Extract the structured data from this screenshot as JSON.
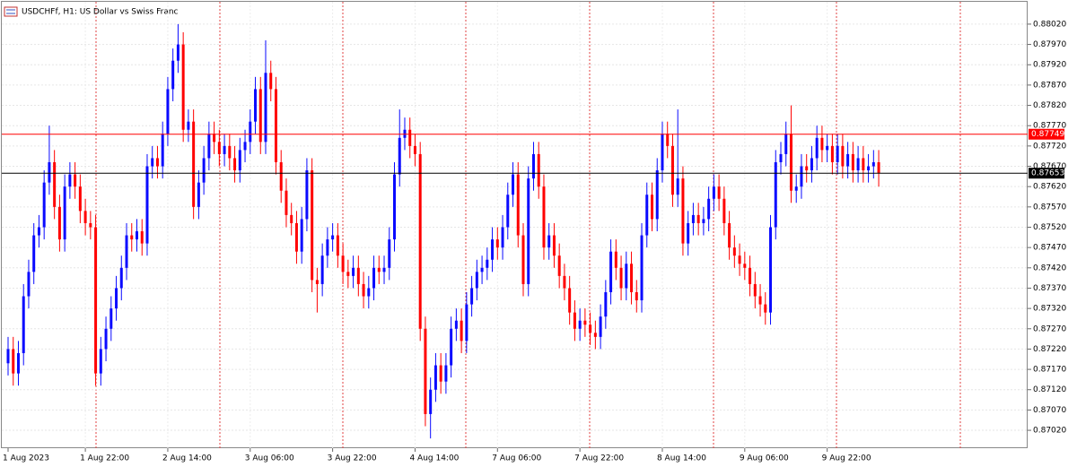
{
  "chart_data": {
    "type": "candlestick",
    "title": "USDCHFf, H1: US Dollar vs Swiss Franc",
    "categories": [
      "1 Aug 2023",
      null,
      null,
      null,
      null,
      null,
      null,
      null,
      null,
      null,
      null,
      null,
      null,
      null,
      null,
      "1 Aug 22:00",
      null,
      null,
      null,
      null,
      null,
      null,
      null,
      null,
      null,
      null,
      null,
      null,
      null,
      null,
      null,
      "2 Aug 14:00",
      null,
      null,
      null,
      null,
      null,
      null,
      null,
      null,
      null,
      null,
      null,
      null,
      null,
      null,
      null,
      "3 Aug 06:00",
      null,
      null,
      null,
      null,
      null,
      null,
      null,
      null,
      null,
      null,
      null,
      null,
      null,
      null,
      null,
      "3 Aug 22:00",
      null,
      null,
      null,
      null,
      null,
      null,
      null,
      null,
      null,
      null,
      null,
      null,
      null,
      null,
      null,
      "4 Aug 14:00",
      null,
      null,
      null,
      null,
      null,
      null,
      null,
      null,
      null,
      null,
      null,
      null,
      null,
      null,
      null,
      "7 Aug 06:00",
      null,
      null,
      null,
      null,
      null,
      null,
      null,
      null,
      null,
      null,
      null,
      null,
      null,
      null,
      null,
      "7 Aug 22:00",
      null,
      null,
      null,
      null,
      null,
      null,
      null,
      null,
      null,
      null,
      null,
      null,
      null,
      null,
      null,
      "8 Aug 14:00",
      null,
      null,
      null,
      null,
      null,
      null,
      null,
      null,
      null,
      null,
      null,
      null,
      null,
      null,
      null,
      "9 Aug 06:00",
      null,
      null,
      null,
      null,
      null,
      null,
      null,
      null,
      null,
      null,
      null,
      null,
      null,
      null,
      null,
      "9 Aug 22:00",
      null,
      null,
      null,
      null,
      null,
      null,
      null,
      null,
      null,
      null
    ],
    "open": [
      0.87185,
      0.8722,
      0.8716,
      0.8721,
      0.8735,
      0.8741,
      0.875,
      0.8752,
      0.8763,
      0.8768,
      0.8757,
      0.8749,
      0.8762,
      0.8765,
      0.8762,
      0.8756,
      0.8753,
      0.8752,
      0.8716,
      0.8722,
      0.8727,
      0.8732,
      0.8737,
      0.8742,
      0.875,
      0.8749,
      0.8751,
      0.8748,
      0.8767,
      0.8769,
      0.8767,
      0.8775,
      0.8786,
      0.8793,
      0.8797,
      0.8776,
      0.8778,
      0.8757,
      0.8763,
      0.8769,
      0.8775,
      0.8773,
      0.877,
      0.8772,
      0.8769,
      0.8766,
      0.8771,
      0.8773,
      0.8778,
      0.8786,
      0.8773,
      0.879,
      0.8786,
      0.8768,
      0.8761,
      0.8755,
      0.8753,
      0.8746,
      0.8754,
      0.8766,
      0.8739,
      0.8738,
      0.8745,
      0.8749,
      0.875,
      0.8745,
      0.8741,
      0.874,
      0.8742,
      0.8738,
      0.8735,
      0.8737,
      0.8742,
      0.8741,
      0.8742,
      0.8749,
      0.8765,
      0.8774,
      0.8776,
      0.8772,
      0.877,
      0.8727,
      0.8706,
      0.8712,
      0.8718,
      0.8714,
      0.8718,
      0.8727,
      0.8729,
      0.8724,
      0.8733,
      0.8737,
      0.8741,
      0.8742,
      0.8744,
      0.8749,
      0.8747,
      0.8752,
      0.876,
      0.8765,
      0.875,
      0.8738,
      0.8764,
      0.877,
      0.8762,
      0.8747,
      0.875,
      0.8745,
      0.874,
      0.8737,
      0.8731,
      0.8727,
      0.8729,
      0.8728,
      0.8726,
      0.8725,
      0.873,
      0.8736,
      0.8746,
      0.8742,
      0.8737,
      0.8743,
      0.8736,
      0.8734,
      0.875,
      0.876,
      0.8754,
      0.8766,
      0.8775,
      0.8772,
      0.876,
      0.8764,
      0.8748,
      0.8753,
      0.8755,
      0.8753,
      0.8754,
      0.8759,
      0.8762,
      0.8759,
      0.8753,
      0.8747,
      0.8745,
      0.8743,
      0.8742,
      0.8738,
      0.8735,
      0.8733,
      0.8731,
      0.8752,
      0.8768,
      0.877,
      0.8775,
      0.8761,
      0.8762,
      0.8767,
      0.8766,
      0.8769,
      0.8774,
      0.8771,
      0.8772,
      0.8768,
      0.8772,
      0.8767,
      0.877,
      0.8766,
      0.8769,
      0.8766,
      0.8767,
      0.8768
    ],
    "high": [
      0.8725,
      0.8725,
      0.8724,
      0.8738,
      0.8744,
      0.8753,
      0.8755,
      0.8766,
      0.8777,
      0.8771,
      0.876,
      0.8765,
      0.8768,
      0.8768,
      0.8765,
      0.8759,
      0.8756,
      0.8755,
      0.8725,
      0.873,
      0.8735,
      0.874,
      0.8745,
      0.8753,
      0.8753,
      0.8754,
      0.8754,
      0.877,
      0.8772,
      0.8772,
      0.8778,
      0.8789,
      0.8796,
      0.8802,
      0.88,
      0.8781,
      0.8781,
      0.8766,
      0.8772,
      0.8778,
      0.8778,
      0.8776,
      0.8775,
      0.8775,
      0.8772,
      0.8774,
      0.8776,
      0.8781,
      0.8789,
      0.8789,
      0.8798,
      0.8793,
      0.8789,
      0.8771,
      0.8764,
      0.8758,
      0.8756,
      0.8757,
      0.8769,
      0.8769,
      0.8742,
      0.8748,
      0.8752,
      0.8753,
      0.8753,
      0.8748,
      0.8744,
      0.8745,
      0.8745,
      0.8741,
      0.874,
      0.8745,
      0.8745,
      0.8745,
      0.8752,
      0.8768,
      0.8781,
      0.8779,
      0.8779,
      0.8775,
      0.8773,
      0.873,
      0.8715,
      0.8721,
      0.8721,
      0.8721,
      0.873,
      0.8732,
      0.8732,
      0.8736,
      0.874,
      0.8744,
      0.8745,
      0.8747,
      0.8752,
      0.8752,
      0.8755,
      0.8763,
      0.8768,
      0.8768,
      0.8753,
      0.8767,
      0.8773,
      0.8773,
      0.8765,
      0.8753,
      0.8753,
      0.8748,
      0.8743,
      0.874,
      0.8734,
      0.8732,
      0.8732,
      0.8731,
      0.8729,
      0.8733,
      0.8739,
      0.8749,
      0.8749,
      0.8745,
      0.8746,
      0.8746,
      0.8739,
      0.8753,
      0.8763,
      0.8763,
      0.8769,
      0.8778,
      0.8778,
      0.8775,
      0.8781,
      0.8767,
      0.8756,
      0.8758,
      0.8758,
      0.8757,
      0.8762,
      0.8765,
      0.8765,
      0.8762,
      0.8756,
      0.875,
      0.8748,
      0.8746,
      0.8745,
      0.8741,
      0.8738,
      0.8736,
      0.8755,
      0.8771,
      0.8773,
      0.8778,
      0.8782,
      0.8765,
      0.877,
      0.877,
      0.8772,
      0.8777,
      0.8777,
      0.8775,
      0.8775,
      0.8775,
      0.8775,
      0.8773,
      0.8773,
      0.8772,
      0.8772,
      0.877,
      0.8771,
      0.8771
    ],
    "low": [
      0.87155,
      0.8713,
      0.8713,
      0.8718,
      0.8732,
      0.8738,
      0.8747,
      0.8749,
      0.876,
      0.8754,
      0.8746,
      0.8746,
      0.8759,
      0.8759,
      0.8753,
      0.875,
      0.8749,
      0.8713,
      0.8713,
      0.8719,
      0.8724,
      0.8729,
      0.8734,
      0.8739,
      0.8746,
      0.8746,
      0.8745,
      0.8745,
      0.8764,
      0.8764,
      0.8764,
      0.8772,
      0.8783,
      0.879,
      0.8773,
      0.8773,
      0.8754,
      0.8754,
      0.876,
      0.8766,
      0.877,
      0.8767,
      0.8767,
      0.8766,
      0.8763,
      0.8763,
      0.8768,
      0.877,
      0.8775,
      0.877,
      0.877,
      0.8783,
      0.8765,
      0.8758,
      0.8752,
      0.875,
      0.8743,
      0.8743,
      0.8751,
      0.8736,
      0.8731,
      0.8735,
      0.8742,
      0.8746,
      0.8742,
      0.8738,
      0.8737,
      0.8737,
      0.8735,
      0.8732,
      0.8732,
      0.8734,
      0.8738,
      0.8738,
      0.8739,
      0.8746,
      0.8762,
      0.8771,
      0.8769,
      0.8767,
      0.8724,
      0.8703,
      0.87,
      0.8709,
      0.8711,
      0.8711,
      0.8715,
      0.8724,
      0.8721,
      0.8721,
      0.873,
      0.8734,
      0.8738,
      0.8739,
      0.8741,
      0.8744,
      0.8744,
      0.8749,
      0.8757,
      0.8747,
      0.8735,
      0.8735,
      0.8761,
      0.8759,
      0.8744,
      0.8744,
      0.8742,
      0.8737,
      0.8734,
      0.8728,
      0.8724,
      0.8724,
      0.8725,
      0.8723,
      0.8722,
      0.8722,
      0.8727,
      0.8733,
      0.8739,
      0.8734,
      0.8734,
      0.8733,
      0.8731,
      0.8731,
      0.8747,
      0.8751,
      0.8751,
      0.8763,
      0.8769,
      0.8757,
      0.8757,
      0.8745,
      0.8745,
      0.875,
      0.875,
      0.875,
      0.8751,
      0.8756,
      0.8756,
      0.875,
      0.8744,
      0.8742,
      0.874,
      0.8739,
      0.8735,
      0.8732,
      0.873,
      0.8728,
      0.8728,
      0.8749,
      0.8765,
      0.8767,
      0.8758,
      0.8758,
      0.8759,
      0.8763,
      0.8763,
      0.8766,
      0.8768,
      0.8768,
      0.8765,
      0.8765,
      0.8764,
      0.8764,
      0.8763,
      0.8763,
      0.8763,
      0.8763,
      0.8764,
      0.8762
    ],
    "close": [
      0.8722,
      0.8716,
      0.8721,
      0.8735,
      0.8741,
      0.875,
      0.8752,
      0.8763,
      0.8768,
      0.8757,
      0.8749,
      0.8762,
      0.8765,
      0.8762,
      0.8756,
      0.8753,
      0.8752,
      0.8716,
      0.8722,
      0.8727,
      0.8732,
      0.8737,
      0.8742,
      0.875,
      0.8749,
      0.8751,
      0.8748,
      0.8767,
      0.8769,
      0.8767,
      0.8775,
      0.8786,
      0.8793,
      0.8797,
      0.8776,
      0.8778,
      0.8757,
      0.8763,
      0.8769,
      0.8775,
      0.8773,
      0.877,
      0.8772,
      0.8769,
      0.8766,
      0.8771,
      0.8773,
      0.8778,
      0.8786,
      0.8773,
      0.879,
      0.8786,
      0.8768,
      0.8761,
      0.8755,
      0.8753,
      0.8746,
      0.8754,
      0.8766,
      0.8739,
      0.8738,
      0.8745,
      0.8749,
      0.875,
      0.8745,
      0.8741,
      0.874,
      0.8742,
      0.8738,
      0.8735,
      0.8737,
      0.8742,
      0.8741,
      0.8742,
      0.8749,
      0.8765,
      0.8774,
      0.8776,
      0.8772,
      0.877,
      0.8727,
      0.8706,
      0.8712,
      0.8718,
      0.8714,
      0.8718,
      0.8727,
      0.8729,
      0.8724,
      0.8733,
      0.8737,
      0.8741,
      0.8742,
      0.8744,
      0.8749,
      0.8747,
      0.8752,
      0.876,
      0.8765,
      0.875,
      0.8738,
      0.8764,
      0.877,
      0.8762,
      0.8747,
      0.875,
      0.8745,
      0.874,
      0.8737,
      0.8731,
      0.8727,
      0.8729,
      0.8728,
      0.8726,
      0.8725,
      0.873,
      0.8736,
      0.8746,
      0.8742,
      0.8737,
      0.8743,
      0.8736,
      0.8734,
      0.875,
      0.876,
      0.8754,
      0.8766,
      0.8775,
      0.8772,
      0.876,
      0.8764,
      0.8748,
      0.8753,
      0.8755,
      0.8753,
      0.8754,
      0.8759,
      0.8762,
      0.8759,
      0.8753,
      0.8747,
      0.8745,
      0.8743,
      0.8742,
      0.8738,
      0.8735,
      0.8733,
      0.8731,
      0.8752,
      0.8768,
      0.877,
      0.8775,
      0.8761,
      0.8762,
      0.8767,
      0.8766,
      0.8769,
      0.8774,
      0.8771,
      0.8772,
      0.8768,
      0.8772,
      0.8767,
      0.877,
      0.8766,
      0.8769,
      0.8766,
      0.8767,
      0.8768,
      0.87653
    ],
    "up_color": "#0a0aff",
    "down_color": "#ff0000",
    "ylim": [
      0.86976,
      0.88075
    ],
    "yticks": [
      {
        "value": 0.8802,
        "label": "0.88020"
      },
      {
        "value": 0.8797,
        "label": "0.87970"
      },
      {
        "value": 0.8792,
        "label": "0.87920"
      },
      {
        "value": 0.8787,
        "label": "0.87870"
      },
      {
        "value": 0.8782,
        "label": "0.87820"
      },
      {
        "value": 0.8777,
        "label": "0.87770"
      },
      {
        "value": 0.8772,
        "label": "0.87720"
      },
      {
        "value": 0.8767,
        "label": "0.87670"
      },
      {
        "value": 0.8762,
        "label": "0.87620"
      },
      {
        "value": 0.8757,
        "label": "0.87570"
      },
      {
        "value": 0.8752,
        "label": "0.87520"
      },
      {
        "value": 0.8747,
        "label": "0.87470"
      },
      {
        "value": 0.8742,
        "label": "0.87420"
      },
      {
        "value": 0.8737,
        "label": "0.87370"
      },
      {
        "value": 0.8732,
        "label": "0.87320"
      },
      {
        "value": 0.8727,
        "label": "0.87270"
      },
      {
        "value": 0.8722,
        "label": "0.87220"
      },
      {
        "value": 0.8717,
        "label": "0.87170"
      },
      {
        "value": 0.8712,
        "label": "0.87120"
      },
      {
        "value": 0.8707,
        "label": "0.87070"
      },
      {
        "value": 0.8702,
        "label": "0.87020"
      }
    ],
    "price_lines": [
      {
        "value": 0.87749,
        "color": "#ff0000"
      },
      {
        "value": 0.87653,
        "color": "#000000"
      }
    ],
    "grid": true
  }
}
